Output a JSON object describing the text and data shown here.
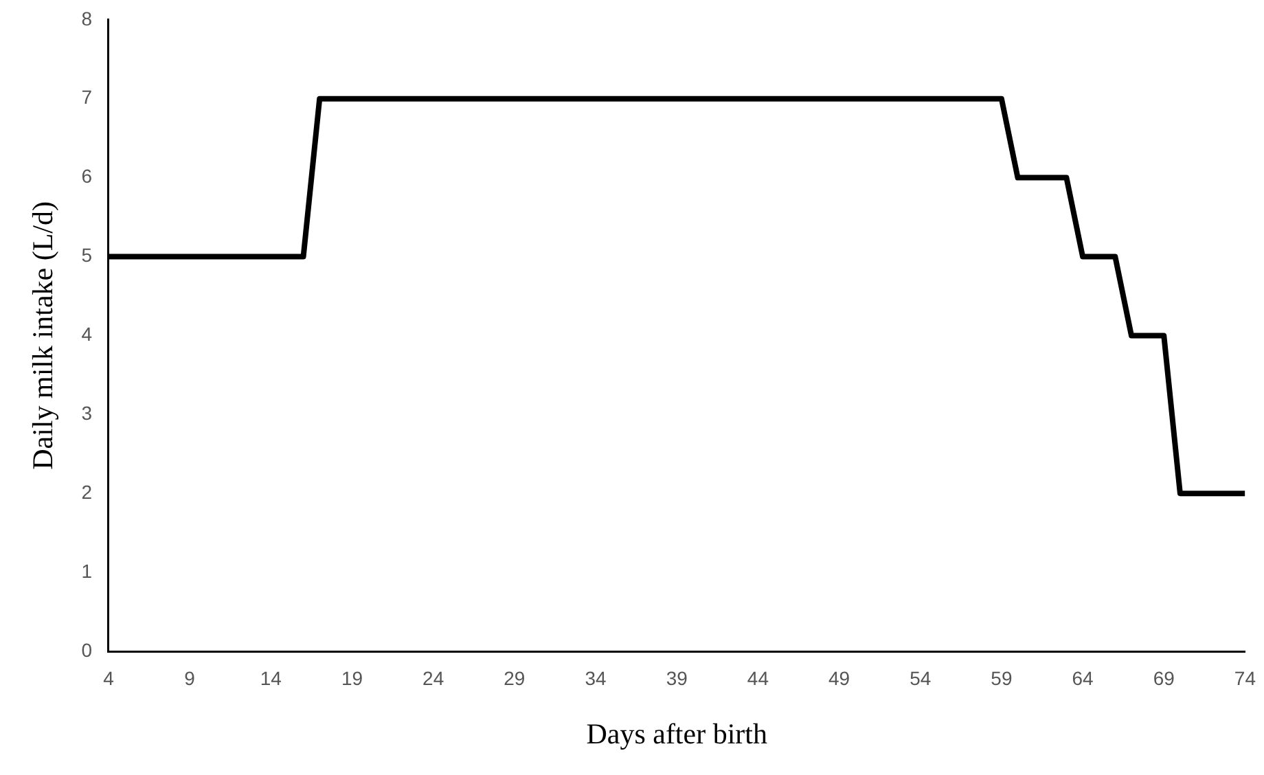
{
  "chart_data": {
    "type": "line",
    "xlabel": "Days after birth",
    "ylabel": "Daily milk intake (L/d)",
    "x": [
      4,
      16,
      17,
      59,
      60,
      63,
      64,
      66,
      67,
      69,
      70,
      74
    ],
    "values": [
      5,
      5,
      7,
      7,
      6,
      6,
      5,
      5,
      4,
      4,
      2,
      2
    ],
    "color": "#000000",
    "xlim": [
      4,
      74
    ],
    "xticks": [
      4,
      9,
      14,
      19,
      24,
      29,
      34,
      39,
      44,
      49,
      54,
      59,
      64,
      69,
      74
    ],
    "ylim": [
      0,
      8
    ],
    "yticks": [
      0,
      1,
      2,
      3,
      4,
      5,
      6,
      7,
      8
    ]
  }
}
